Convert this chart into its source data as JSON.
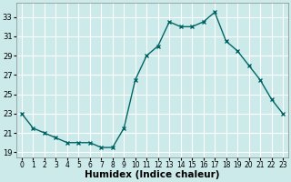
{
  "x": [
    0,
    1,
    2,
    3,
    4,
    5,
    6,
    7,
    8,
    9,
    10,
    11,
    12,
    13,
    14,
    15,
    16,
    17,
    18,
    19,
    20,
    21,
    22,
    23
  ],
  "y": [
    23,
    21.5,
    21,
    20.5,
    20,
    20,
    20,
    19.5,
    19.5,
    21.5,
    26.5,
    29,
    30,
    32.5,
    32,
    32,
    32.5,
    33.5,
    30.5,
    29.5,
    28,
    26.5,
    24.5,
    23
  ],
  "xlabel": "Humidex (Indice chaleur)",
  "line_color": "#006666",
  "marker": "x",
  "bg_color": "#cceaea",
  "grid_color": "#ffffff",
  "grid_minor_color": "#e8f8f8",
  "ylim": [
    18.5,
    34.5
  ],
  "xlim": [
    -0.5,
    23.5
  ],
  "yticks": [
    19,
    21,
    23,
    25,
    27,
    29,
    31,
    33
  ],
  "xticks": [
    0,
    1,
    2,
    3,
    4,
    5,
    6,
    7,
    8,
    9,
    10,
    11,
    12,
    13,
    14,
    15,
    16,
    17,
    18,
    19,
    20,
    21,
    22,
    23
  ],
  "xlabel_fontsize": 7.5,
  "tick_fontsize": 6.5
}
